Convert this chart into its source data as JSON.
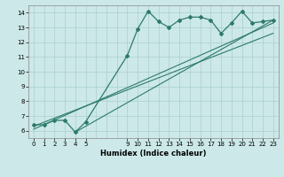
{
  "title": "",
  "xlabel": "Humidex (Indice chaleur)",
  "xlim": [
    -0.5,
    23.5
  ],
  "ylim": [
    5.5,
    14.5
  ],
  "xticks": [
    0,
    1,
    2,
    3,
    4,
    5,
    9,
    10,
    11,
    12,
    13,
    14,
    15,
    16,
    17,
    18,
    19,
    20,
    21,
    22,
    23
  ],
  "yticks": [
    6,
    7,
    8,
    9,
    10,
    11,
    12,
    13,
    14
  ],
  "grid_xticks": [
    0,
    1,
    2,
    3,
    4,
    5,
    6,
    7,
    8,
    9,
    10,
    11,
    12,
    13,
    14,
    15,
    16,
    17,
    18,
    19,
    20,
    21,
    22,
    23
  ],
  "grid_yticks": [
    6,
    7,
    8,
    9,
    10,
    11,
    12,
    13,
    14
  ],
  "line_color": "#2d7a6a",
  "bg_color": "#cce8e8",
  "grid_color": "#aacfcf",
  "curve_x": [
    0,
    1,
    2,
    3,
    4,
    5,
    9,
    10,
    11,
    12,
    13,
    14,
    15,
    16,
    17,
    18,
    19,
    20,
    21,
    22,
    23
  ],
  "curve_y": [
    6.4,
    6.4,
    6.7,
    6.7,
    5.9,
    6.6,
    11.1,
    12.9,
    14.1,
    13.4,
    13.0,
    13.5,
    13.7,
    13.7,
    13.5,
    12.6,
    13.3,
    14.1,
    13.3,
    13.4,
    13.5
  ],
  "line1_x": [
    0,
    23
  ],
  "line1_y": [
    6.3,
    12.6
  ],
  "line2_x": [
    0,
    23
  ],
  "line2_y": [
    6.1,
    13.3
  ],
  "line3_x": [
    4,
    23
  ],
  "line3_y": [
    5.9,
    13.5
  ]
}
